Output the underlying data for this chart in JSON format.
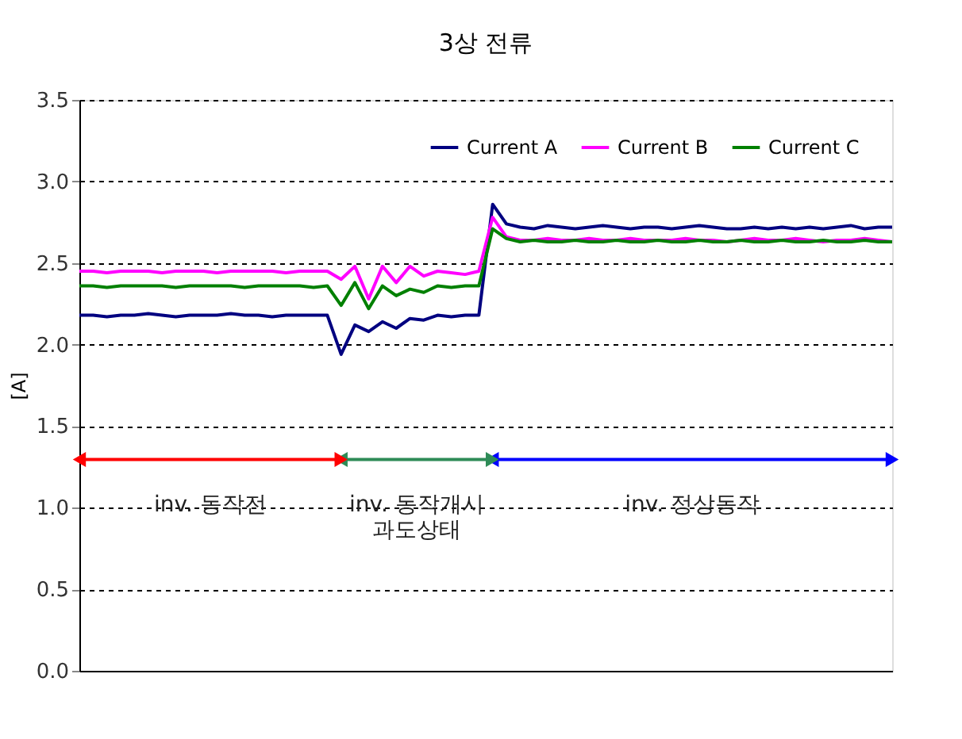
{
  "chart_data": {
    "type": "line",
    "title": "3상 전류",
    "ylabel": "[A]",
    "categories": [
      null,
      null,
      null,
      null,
      null,
      null,
      null,
      null,
      null,
      null,
      null,
      null,
      null,
      null,
      null,
      null,
      null,
      null,
      null,
      null,
      null,
      null,
      null,
      null,
      null,
      null,
      null,
      null,
      null,
      null,
      null,
      null,
      null,
      null,
      null,
      null,
      null,
      null,
      null,
      null,
      null,
      null,
      null,
      null,
      null,
      null,
      null,
      null,
      null,
      null,
      null,
      null,
      null,
      null,
      null,
      null,
      null,
      null,
      null,
      null
    ],
    "ylim": [
      0,
      3.5
    ],
    "yticks": [
      {
        "value": 0,
        "label": "0.0"
      },
      {
        "value": 0.5,
        "label": "0.5"
      },
      {
        "value": 1,
        "label": "1.0"
      },
      {
        "value": 1.5,
        "label": "1.5"
      },
      {
        "value": 2,
        "label": "2.0"
      },
      {
        "value": 2.5,
        "label": "2.5"
      },
      {
        "value": 3,
        "label": "3.0"
      },
      {
        "value": 3.5,
        "label": "3.5"
      }
    ],
    "tick_labels": "y",
    "grid": "y",
    "legend": "top right",
    "marker": "none",
    "line_style": "solid",
    "series": [
      {
        "name": "Current A",
        "color": "#000080",
        "values": [
          2.18,
          2.18,
          2.17,
          2.18,
          2.18,
          2.19,
          2.18,
          2.17,
          2.18,
          2.18,
          2.18,
          2.19,
          2.18,
          2.18,
          2.17,
          2.18,
          2.18,
          2.18,
          2.18,
          1.94,
          2.12,
          2.08,
          2.14,
          2.1,
          2.16,
          2.15,
          2.18,
          2.17,
          2.18,
          2.18,
          2.86,
          2.74,
          2.72,
          2.71,
          2.73,
          2.72,
          2.71,
          2.72,
          2.73,
          2.72,
          2.71,
          2.72,
          2.72,
          2.71,
          2.72,
          2.73,
          2.72,
          2.71,
          2.71,
          2.72,
          2.71,
          2.72,
          2.71,
          2.72,
          2.71,
          2.72,
          2.73,
          2.71,
          2.72,
          2.72
        ]
      },
      {
        "name": "Current B",
        "color": "#ff00ff",
        "values": [
          2.45,
          2.45,
          2.44,
          2.45,
          2.45,
          2.45,
          2.44,
          2.45,
          2.45,
          2.45,
          2.44,
          2.45,
          2.45,
          2.45,
          2.45,
          2.44,
          2.45,
          2.45,
          2.45,
          2.4,
          2.48,
          2.28,
          2.48,
          2.38,
          2.48,
          2.42,
          2.45,
          2.44,
          2.43,
          2.45,
          2.78,
          2.66,
          2.64,
          2.64,
          2.65,
          2.64,
          2.64,
          2.65,
          2.64,
          2.64,
          2.65,
          2.64,
          2.64,
          2.64,
          2.65,
          2.64,
          2.64,
          2.63,
          2.64,
          2.65,
          2.64,
          2.64,
          2.65,
          2.64,
          2.63,
          2.64,
          2.64,
          2.65,
          2.64,
          2.63
        ]
      },
      {
        "name": "Current C",
        "color": "#008000",
        "values": [
          2.36,
          2.36,
          2.35,
          2.36,
          2.36,
          2.36,
          2.36,
          2.35,
          2.36,
          2.36,
          2.36,
          2.36,
          2.35,
          2.36,
          2.36,
          2.36,
          2.36,
          2.35,
          2.36,
          2.24,
          2.38,
          2.22,
          2.36,
          2.3,
          2.34,
          2.32,
          2.36,
          2.35,
          2.36,
          2.36,
          2.71,
          2.65,
          2.63,
          2.64,
          2.63,
          2.63,
          2.64,
          2.63,
          2.63,
          2.64,
          2.63,
          2.63,
          2.64,
          2.63,
          2.63,
          2.64,
          2.63,
          2.63,
          2.64,
          2.63,
          2.63,
          2.64,
          2.63,
          2.63,
          2.64,
          2.63,
          2.63,
          2.64,
          2.63,
          2.63
        ]
      }
    ],
    "annotations": [
      "inv. 동작전",
      "inv. 동작개시\n과도상태",
      "inv. 정상동작"
    ]
  }
}
